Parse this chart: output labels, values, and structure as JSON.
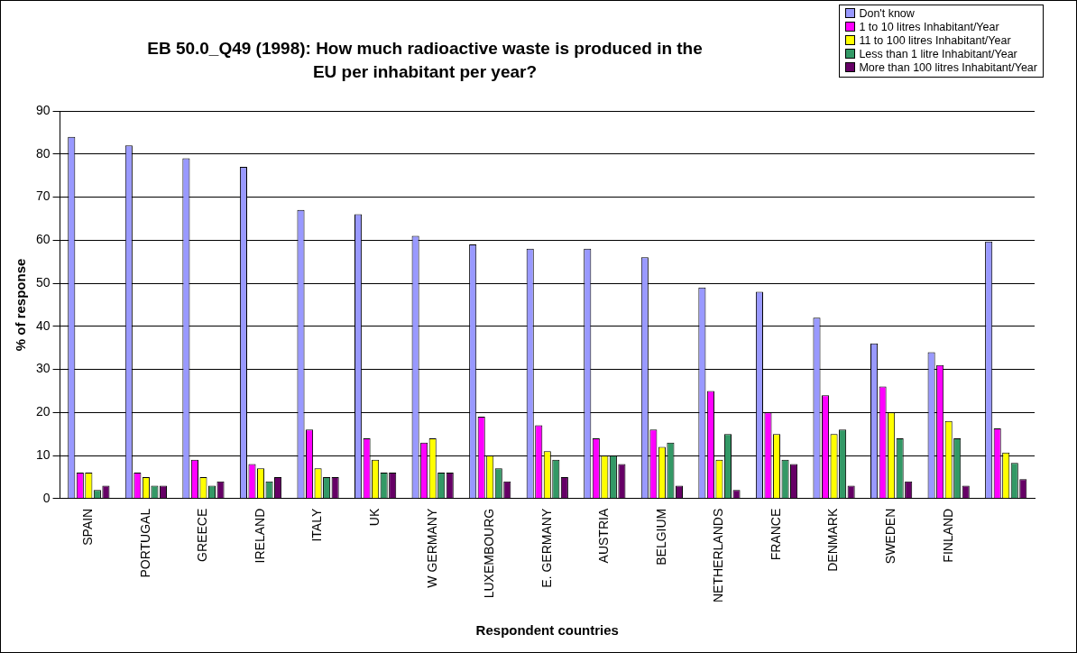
{
  "chart_data": {
    "type": "bar",
    "title": "EB 50.0_Q49 (1998): How much radioactive waste is produced in the EU per inhabitant per year?",
    "xlabel": "Respondent countries",
    "ylabel": "% of response",
    "categories": [
      "SPAIN",
      "PORTUGAL",
      "GREECE",
      "IRELAND",
      "ITALY",
      "UK",
      "W GERMANY",
      "LUXEMBOURG",
      "E. GERMANY",
      "AUSTRIA",
      "BELGIUM",
      "NETHERLANDS",
      "FRANCE",
      "DENMARK",
      "SWEDEN",
      "FINLAND",
      null
    ],
    "series": [
      {
        "name": "Don't know",
        "color": "#9999ff",
        "values": [
          84,
          82,
          79,
          77,
          67,
          66,
          61,
          59,
          58,
          58,
          56,
          49,
          48,
          42,
          36,
          34,
          59.7
        ]
      },
      {
        "name": "1 to 10 litres Inhabitant/Year",
        "color": "#ff00ff",
        "values": [
          6,
          6,
          9,
          8,
          16,
          14,
          13,
          19,
          17,
          14,
          16,
          25,
          20,
          24,
          26,
          31,
          16.3
        ]
      },
      {
        "name": "11 to 100 litres Inhabitant/Year",
        "color": "#ffff00",
        "values": [
          6,
          5,
          5,
          7,
          7,
          9,
          14,
          10,
          11,
          10,
          12,
          9,
          15,
          15,
          20,
          18,
          10.7
        ]
      },
      {
        "name": "Less than 1 litre Inhabitant/Year",
        "color": "#339966",
        "values": [
          2,
          3,
          3,
          4,
          5,
          6,
          6,
          7,
          9,
          10,
          13,
          15,
          9,
          16,
          14,
          14,
          8.3
        ]
      },
      {
        "name": "More than 100 litres Inhabitant/Year",
        "color": "#660066",
        "values": [
          3,
          3,
          4,
          5,
          5,
          6,
          6,
          4,
          5,
          8,
          3,
          2,
          8,
          3,
          4,
          3,
          4.5
        ]
      }
    ],
    "ylim": [
      0,
      90
    ],
    "yticks": [
      0,
      10,
      20,
      30,
      40,
      50,
      60,
      70,
      80,
      90
    ],
    "grid": "y",
    "legend": "top right"
  }
}
